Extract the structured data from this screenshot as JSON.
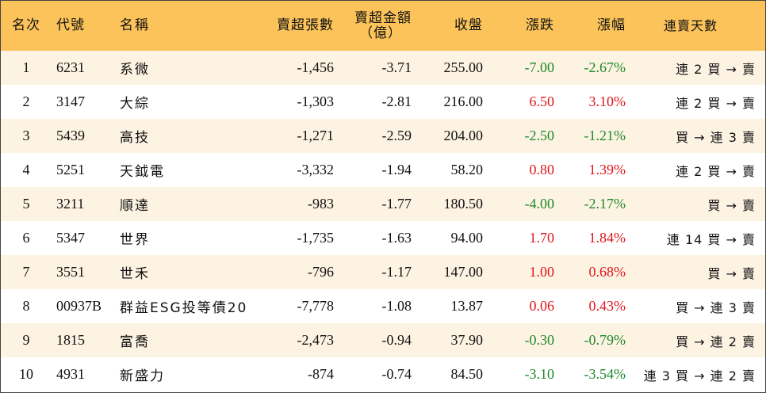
{
  "headers": {
    "rank": "名次",
    "code": "代號",
    "name": "名稱",
    "sell_shares": "賣超張數",
    "sell_amount_line1": "賣超金額",
    "sell_amount_line2": "（億）",
    "close": "收盤",
    "change": "漲跌",
    "change_pct": "漲幅",
    "streak": "連賣天數"
  },
  "colors": {
    "header_bg": "#fbc35a",
    "odd_row_bg": "#fdf3e3",
    "up": "#e0161b",
    "down": "#1c8a2a"
  },
  "rows": [
    {
      "rank": "1",
      "code": "6231",
      "name": "系微",
      "sell_shares": "-1,456",
      "sell_amount": "-3.71",
      "close": "255.00",
      "change": "-7.00",
      "change_pct": "-2.67%",
      "direction": "down",
      "streak": "連 2 買 → 賣"
    },
    {
      "rank": "2",
      "code": "3147",
      "name": "大綜",
      "sell_shares": "-1,303",
      "sell_amount": "-2.81",
      "close": "216.00",
      "change": "6.50",
      "change_pct": "3.10%",
      "direction": "up",
      "streak": "連 2 買 → 賣"
    },
    {
      "rank": "3",
      "code": "5439",
      "name": "高技",
      "sell_shares": "-1,271",
      "sell_amount": "-2.59",
      "close": "204.00",
      "change": "-2.50",
      "change_pct": "-1.21%",
      "direction": "down",
      "streak": "買 → 連 3 賣"
    },
    {
      "rank": "4",
      "code": "5251",
      "name": "天鉞電",
      "sell_shares": "-3,332",
      "sell_amount": "-1.94",
      "close": "58.20",
      "change": "0.80",
      "change_pct": "1.39%",
      "direction": "up",
      "streak": "連 2 買 → 賣"
    },
    {
      "rank": "5",
      "code": "3211",
      "name": "順達",
      "sell_shares": "-983",
      "sell_amount": "-1.77",
      "close": "180.50",
      "change": "-4.00",
      "change_pct": "-2.17%",
      "direction": "down",
      "streak": "買 → 賣"
    },
    {
      "rank": "6",
      "code": "5347",
      "name": "世界",
      "sell_shares": "-1,735",
      "sell_amount": "-1.63",
      "close": "94.00",
      "change": "1.70",
      "change_pct": "1.84%",
      "direction": "up",
      "streak": "連 14 買 → 賣"
    },
    {
      "rank": "7",
      "code": "3551",
      "name": "世禾",
      "sell_shares": "-796",
      "sell_amount": "-1.17",
      "close": "147.00",
      "change": "1.00",
      "change_pct": "0.68%",
      "direction": "up",
      "streak": "買 → 賣"
    },
    {
      "rank": "8",
      "code": "00937B",
      "name": "群益ESG投等債20",
      "sell_shares": "-7,778",
      "sell_amount": "-1.08",
      "close": "13.87",
      "change": "0.06",
      "change_pct": "0.43%",
      "direction": "up",
      "streak": "買 → 連 3 賣"
    },
    {
      "rank": "9",
      "code": "1815",
      "name": "富喬",
      "sell_shares": "-2,473",
      "sell_amount": "-0.94",
      "close": "37.90",
      "change": "-0.30",
      "change_pct": "-0.79%",
      "direction": "down",
      "streak": "買 → 連 2 賣"
    },
    {
      "rank": "10",
      "code": "4931",
      "name": "新盛力",
      "sell_shares": "-874",
      "sell_amount": "-0.74",
      "close": "84.50",
      "change": "-3.10",
      "change_pct": "-3.54%",
      "direction": "down",
      "streak": "連 3 買 → 連 2 賣"
    }
  ]
}
